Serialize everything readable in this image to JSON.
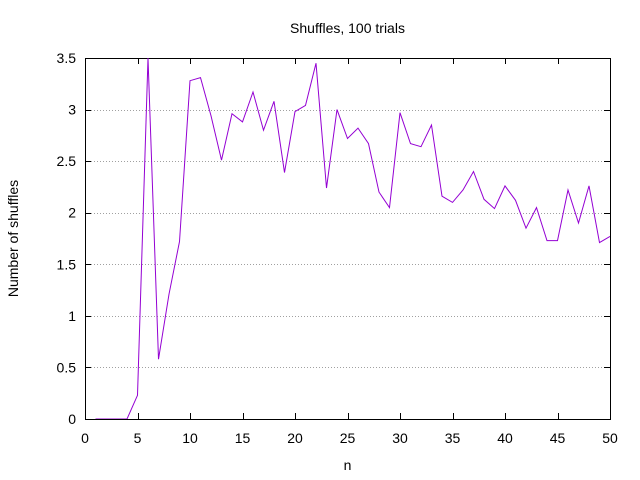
{
  "chart_data": {
    "type": "line",
    "title": "Shuffles, 100 trials",
    "xlabel": "n",
    "ylabel": "Number of shuffles",
    "xlim": [
      0,
      50
    ],
    "ylim": [
      0,
      3.5
    ],
    "x_ticks": [
      0,
      5,
      10,
      15,
      20,
      25,
      30,
      35,
      40,
      45,
      50
    ],
    "y_ticks": [
      0,
      0.5,
      1,
      1.5,
      2,
      2.5,
      3,
      3.5
    ],
    "x_tick_labels": [
      "0",
      "5",
      "10",
      "15",
      "20",
      "25",
      "30",
      "35",
      "40",
      "45",
      "50"
    ],
    "y_tick_labels": [
      "0",
      "0.5",
      "1",
      "1.5",
      "2",
      "2.5",
      "3",
      "3.5"
    ],
    "grid": "horizontal dotted",
    "legend": "none",
    "series": [
      {
        "color": "#9400d3",
        "x": [
          1,
          2,
          3,
          4,
          5,
          6,
          7,
          8,
          9,
          10,
          11,
          12,
          13,
          14,
          15,
          16,
          17,
          18,
          19,
          20,
          21,
          22,
          23,
          24,
          25,
          26,
          27,
          28,
          29,
          30,
          31,
          32,
          33,
          34,
          35,
          36,
          37,
          38,
          39,
          40,
          41,
          42,
          43,
          44,
          45,
          46,
          47,
          48,
          49,
          50
        ],
        "y": [
          0,
          0,
          0,
          0,
          0.23,
          3.5,
          0.58,
          1.21,
          1.72,
          3.28,
          3.31,
          2.94,
          2.51,
          2.96,
          2.88,
          3.17,
          2.8,
          3.08,
          2.39,
          2.98,
          3.04,
          3.45,
          2.24,
          3.0,
          2.72,
          2.82,
          2.67,
          2.2,
          2.05,
          2.97,
          2.67,
          2.64,
          2.85,
          2.16,
          2.1,
          2.22,
          2.4,
          2.13,
          2.04,
          2.26,
          2.12,
          1.85,
          2.05,
          1.73,
          1.73,
          2.22,
          1.9,
          2.26,
          1.71,
          1.77
        ]
      }
    ]
  }
}
